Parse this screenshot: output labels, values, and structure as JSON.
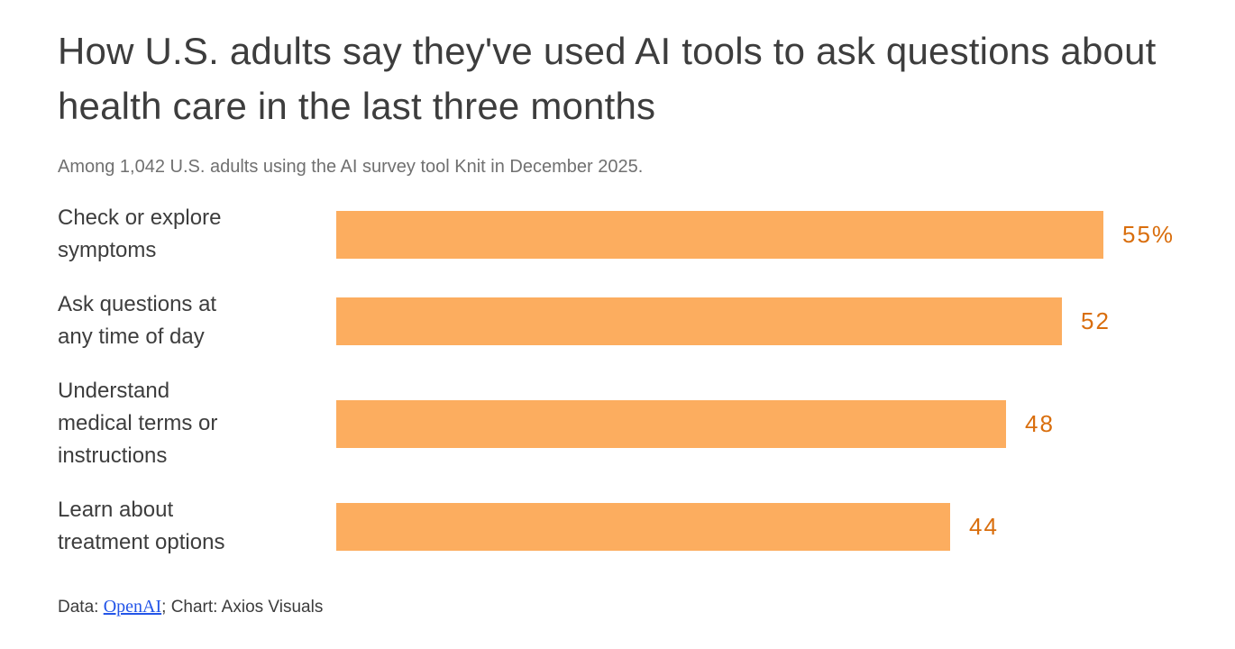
{
  "chart_data": {
    "type": "bar",
    "orientation": "horizontal",
    "title": "How U.S. adults say they've used AI tools to ask questions about health care in the last three months",
    "subtitle": "Among 1,042 U.S. adults using the AI survey tool Knit in December 2025.",
    "categories": [
      "Check or explore symptoms",
      "Ask questions at any time of day",
      "Understand medical terms or instructions",
      "Learn about treatment options"
    ],
    "category_lines": [
      [
        "Check or explore",
        "symptoms"
      ],
      [
        "Ask questions at",
        "any time of day"
      ],
      [
        "Understand",
        "medical terms or",
        "instructions"
      ],
      [
        "Learn about",
        "treatment options"
      ]
    ],
    "values": [
      55,
      52,
      48,
      44
    ],
    "value_labels": [
      "55%",
      "52",
      "48",
      "44"
    ],
    "unit": "percent",
    "xlim": [
      0,
      55
    ],
    "grid": false,
    "legend": false,
    "bar_color": "#fcad5f",
    "value_label_color": "#d96e0d",
    "title_color": "#3d3d3d",
    "subtitle_color": "#707070"
  },
  "footer": {
    "prefix": "Data: ",
    "link_label": "OpenAI",
    "suffix": "; Chart: Axios Visuals"
  }
}
